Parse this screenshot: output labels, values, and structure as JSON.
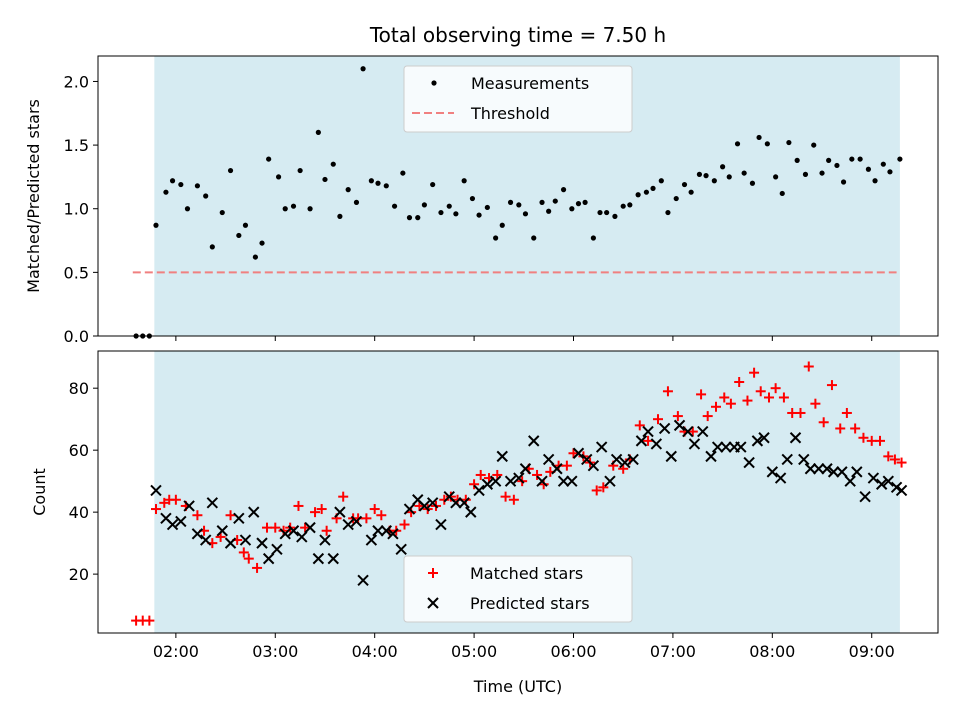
{
  "chart_data": [
    {
      "type": "scatter",
      "title": "Total observing time = 7.50 h",
      "xlabel": "",
      "ylabel": "Matched/Predicted stars",
      "xlim": [
        "01:13",
        "09:40"
      ],
      "ylim": [
        0,
        2.2
      ],
      "x_ticks": [
        "02:00",
        "03:00",
        "04:00",
        "05:00",
        "06:00",
        "07:00",
        "08:00",
        "09:00"
      ],
      "y_ticks": [
        "0.0",
        "0.5",
        "1.0",
        "1.5",
        "2.0"
      ],
      "observing_window": [
        "01:47",
        "09:17"
      ],
      "threshold": {
        "name": "Threshold",
        "value": 0.5,
        "x": [
          "01:34",
          "09:15"
        ],
        "color": "#f08080",
        "style": "dashed"
      },
      "legend": {
        "placement": "upper center",
        "entries": [
          "Measurements",
          "Threshold"
        ]
      },
      "series": [
        {
          "name": "Measurements",
          "color": "#000000",
          "marker": "dot",
          "x": [
            "01:36",
            "01:40",
            "01:44",
            "01:48",
            "01:54",
            "01:58",
            "02:03",
            "02:07",
            "02:13",
            "02:18",
            "02:22",
            "02:28",
            "02:33",
            "02:38",
            "02:42",
            "02:48",
            "02:52",
            "02:56",
            "03:02",
            "03:06",
            "03:11",
            "03:15",
            "03:21",
            "03:26",
            "03:30",
            "03:35",
            "03:39",
            "03:44",
            "03:49",
            "03:53",
            "03:58",
            "04:02",
            "04:07",
            "04:12",
            "04:17",
            "04:21",
            "04:26",
            "04:30",
            "04:35",
            "04:40",
            "04:45",
            "04:49",
            "04:54",
            "04:59",
            "05:03",
            "05:08",
            "05:13",
            "05:17",
            "05:22",
            "05:27",
            "05:31",
            "05:36",
            "05:41",
            "05:45",
            "05:49",
            "05:54",
            "05:59",
            "06:03",
            "06:07",
            "06:12",
            "06:16",
            "06:20",
            "06:25",
            "06:30",
            "06:34",
            "06:39",
            "06:44",
            "06:48",
            "06:53",
            "06:57",
            "07:02",
            "07:07",
            "07:11",
            "07:16",
            "07:20",
            "07:25",
            "07:30",
            "07:34",
            "07:39",
            "07:43",
            "07:48",
            "07:52",
            "07:57",
            "08:02",
            "08:06",
            "08:10",
            "08:15",
            "08:20",
            "08:25",
            "08:30",
            "08:34",
            "08:39",
            "08:43",
            "08:48",
            "08:53",
            "08:58",
            "09:02",
            "09:07",
            "09:11",
            "09:17"
          ],
          "y": [
            0.0,
            0.0,
            0.0,
            0.87,
            1.13,
            1.22,
            1.19,
            1.0,
            1.18,
            1.1,
            0.7,
            0.97,
            1.3,
            0.79,
            0.87,
            0.62,
            0.73,
            1.39,
            1.25,
            1.0,
            1.02,
            1.3,
            1.0,
            1.6,
            1.23,
            1.35,
            0.94,
            1.15,
            1.05,
            2.1,
            1.22,
            1.2,
            1.18,
            1.02,
            1.28,
            0.93,
            0.93,
            1.03,
            1.19,
            0.97,
            1.02,
            0.96,
            1.22,
            1.08,
            0.95,
            1.01,
            0.77,
            0.87,
            1.05,
            1.03,
            0.96,
            0.77,
            1.05,
            0.98,
            1.06,
            1.15,
            1.0,
            1.04,
            1.05,
            0.77,
            0.97,
            0.97,
            0.94,
            1.02,
            1.03,
            1.11,
            1.13,
            1.16,
            1.22,
            0.97,
            1.08,
            1.19,
            1.13,
            1.27,
            1.26,
            1.22,
            1.33,
            1.25,
            1.51,
            1.28,
            1.2,
            1.56,
            1.51,
            1.25,
            1.12,
            1.52,
            1.38,
            1.27,
            1.5,
            1.28,
            1.38,
            1.34,
            1.21,
            1.39,
            1.39,
            1.31,
            1.22,
            1.35,
            1.29,
            1.39
          ]
        }
      ]
    },
    {
      "type": "scatter",
      "title": "",
      "xlabel": "Time (UTC)",
      "ylabel": "Count",
      "xlim": [
        "01:13",
        "09:40"
      ],
      "ylim": [
        1,
        92
      ],
      "x_ticks": [
        "02:00",
        "03:00",
        "04:00",
        "05:00",
        "06:00",
        "07:00",
        "08:00",
        "09:00"
      ],
      "y_ticks": [
        "20",
        "40",
        "60",
        "80"
      ],
      "observing_window": [
        "01:47",
        "09:17"
      ],
      "legend": {
        "placement": "lower center",
        "entries": [
          "Matched stars",
          "Predicted stars"
        ]
      },
      "series": [
        {
          "name": "Matched stars",
          "color": "#ff0000",
          "marker": "plus",
          "x": [
            "01:36",
            "01:40",
            "01:44",
            "01:48",
            "01:53",
            "01:56",
            "02:00",
            "02:06",
            "02:13",
            "02:17",
            "02:22",
            "02:27",
            "02:33",
            "02:37",
            "02:41",
            "02:44",
            "02:49",
            "02:55",
            "03:00",
            "03:05",
            "03:09",
            "03:14",
            "03:18",
            "03:24",
            "03:28",
            "03:31",
            "03:37",
            "03:41",
            "03:47",
            "03:50",
            "03:55",
            "04:00",
            "04:04",
            "04:09",
            "04:13",
            "04:18",
            "04:22",
            "04:27",
            "04:32",
            "04:37",
            "04:42",
            "04:46",
            "04:50",
            "04:55",
            "05:00",
            "05:04",
            "05:09",
            "05:14",
            "05:19",
            "05:24",
            "05:29",
            "05:33",
            "05:38",
            "05:42",
            "05:46",
            "05:51",
            "05:56",
            "06:00",
            "06:06",
            "06:10",
            "06:14",
            "06:18",
            "06:24",
            "06:30",
            "06:34",
            "06:40",
            "06:45",
            "06:51",
            "06:57",
            "07:03",
            "07:07",
            "07:12",
            "07:17",
            "07:21",
            "07:26",
            "07:31",
            "07:35",
            "07:40",
            "07:45",
            "07:49",
            "07:53",
            "07:58",
            "08:02",
            "08:07",
            "08:12",
            "08:17",
            "08:22",
            "08:26",
            "08:31",
            "08:36",
            "08:41",
            "08:45",
            "08:50",
            "08:55",
            "09:00",
            "09:05",
            "09:10",
            "09:14",
            "09:18"
          ],
          "y": [
            5,
            5,
            5,
            41,
            43,
            44,
            44,
            42,
            39,
            34,
            30,
            32,
            39,
            31,
            27,
            25,
            22,
            35,
            35,
            34,
            35,
            42,
            35,
            40,
            41,
            34,
            38,
            45,
            38,
            38,
            38,
            41,
            39,
            34,
            34,
            36,
            40,
            42,
            41,
            42,
            44,
            45,
            44,
            44,
            49,
            52,
            51,
            52,
            45,
            44,
            50,
            54,
            52,
            49,
            53,
            55,
            55,
            59,
            58,
            56,
            47,
            48,
            55,
            54,
            57,
            68,
            63,
            70,
            79,
            71,
            66,
            66,
            78,
            71,
            74,
            77,
            75,
            82,
            76,
            85,
            79,
            77,
            80,
            77,
            72,
            72,
            87,
            75,
            69,
            81,
            67,
            72,
            67,
            64,
            63,
            63,
            58,
            57,
            56
          ],
          "note_tail_trim": true
        },
        {
          "name": "Predicted stars",
          "color": "#000000",
          "marker": "x",
          "x": [
            "01:48",
            "01:54",
            "01:58",
            "02:03",
            "02:08",
            "02:13",
            "02:18",
            "02:22",
            "02:28",
            "02:33",
            "02:38",
            "02:42",
            "02:47",
            "02:52",
            "02:56",
            "03:01",
            "03:06",
            "03:11",
            "03:16",
            "03:21",
            "03:26",
            "03:30",
            "03:35",
            "03:39",
            "03:44",
            "03:49",
            "03:53",
            "03:58",
            "04:02",
            "04:07",
            "04:11",
            "04:16",
            "04:21",
            "04:26",
            "04:30",
            "04:35",
            "04:40",
            "04:45",
            "04:49",
            "04:54",
            "04:58",
            "05:03",
            "05:08",
            "05:13",
            "05:17",
            "05:22",
            "05:27",
            "05:31",
            "05:36",
            "05:41",
            "05:45",
            "05:50",
            "05:54",
            "05:59",
            "06:03",
            "06:08",
            "06:12",
            "06:17",
            "06:22",
            "06:26",
            "06:31",
            "06:36",
            "06:41",
            "06:45",
            "06:50",
            "06:55",
            "06:59",
            "07:04",
            "07:09",
            "07:13",
            "07:18",
            "07:23",
            "07:27",
            "07:32",
            "07:37",
            "07:41",
            "07:46",
            "07:51",
            "07:55",
            "08:00",
            "08:05",
            "08:09",
            "08:14",
            "08:19",
            "08:23",
            "08:28",
            "08:33",
            "08:37",
            "08:42",
            "08:47",
            "08:51",
            "08:56",
            "09:01",
            "09:06",
            "09:10",
            "09:15",
            "09:18"
          ],
          "y": [
            47,
            38,
            36,
            37,
            42,
            33,
            31,
            43,
            34,
            30,
            38,
            31,
            40,
            30,
            25,
            28,
            33,
            34,
            32,
            35,
            25,
            31,
            25,
            40,
            36,
            37,
            18,
            31,
            34,
            34,
            33,
            28,
            41,
            44,
            42,
            43,
            36,
            45,
            43,
            43,
            40,
            47,
            49,
            50,
            58,
            50,
            51,
            54,
            63,
            50,
            57,
            54,
            50,
            50,
            59,
            57,
            55,
            61,
            50,
            57,
            56,
            57,
            63,
            66,
            62,
            67,
            58,
            68,
            66,
            62,
            66,
            58,
            61,
            61,
            61,
            61,
            56,
            63,
            64,
            53,
            51,
            57,
            64,
            57,
            54,
            54,
            54,
            53,
            53,
            50,
            53,
            45,
            51,
            49,
            50,
            48,
            47
          ]
        }
      ]
    }
  ]
}
